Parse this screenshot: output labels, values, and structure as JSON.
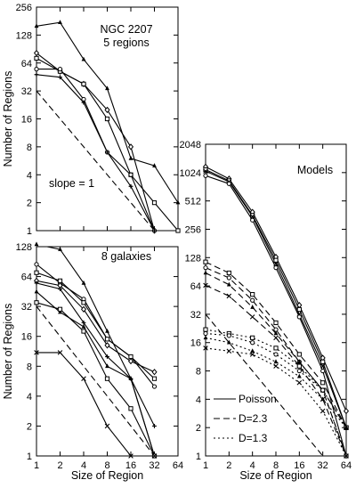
{
  "chart_data": [
    {
      "type": "line",
      "panel": "top-left",
      "annotations": [
        "NGC 2207",
        "5 regions",
        "slope = 1"
      ],
      "xlabel": "",
      "ylabel": "Number of Regions",
      "xscale": "log2",
      "yscale": "log2",
      "xlim": [
        1,
        64
      ],
      "ylim": [
        1,
        256
      ],
      "x_ticks": [
        "1",
        "2",
        "4",
        "8",
        "16",
        "32",
        "64"
      ],
      "y_ticks": [
        "1",
        "2",
        "4",
        "8",
        "16",
        "32",
        "64",
        "128",
        "256"
      ],
      "x_tick_labels_shown": false,
      "series": [
        {
          "style": "solid",
          "marker": "triangle",
          "x": [
            1,
            2,
            4,
            8,
            16,
            32,
            64
          ],
          "y": [
            160,
            175,
            70,
            34,
            6,
            5,
            2
          ]
        },
        {
          "style": "solid",
          "marker": "diamond",
          "x": [
            1,
            2,
            4,
            8,
            16,
            32
          ],
          "y": [
            82,
            52,
            38,
            20,
            8,
            1
          ]
        },
        {
          "style": "solid",
          "marker": "square",
          "x": [
            1,
            2,
            4,
            8,
            16,
            32,
            64
          ],
          "y": [
            72,
            52,
            38,
            16,
            4,
            2,
            1
          ]
        },
        {
          "style": "solid",
          "marker": "circle",
          "x": [
            1,
            2,
            4,
            8,
            16,
            32
          ],
          "y": [
            55,
            55,
            26,
            7,
            4,
            1
          ]
        },
        {
          "style": "solid",
          "marker": "plus",
          "x": [
            1,
            2,
            4,
            8,
            16,
            32
          ],
          "y": [
            48,
            45,
            24,
            7,
            3,
            1
          ]
        },
        {
          "style": "dashed",
          "label": "slope = 1",
          "x": [
            1,
            32
          ],
          "y": [
            32,
            1
          ]
        }
      ]
    },
    {
      "type": "line",
      "panel": "bottom-left",
      "annotations": [
        "8 galaxies"
      ],
      "xlabel": "Size of Region",
      "ylabel": "Number of Regions",
      "xscale": "log2",
      "yscale": "log2",
      "xlim": [
        1,
        64
      ],
      "ylim": [
        1,
        128
      ],
      "x_ticks": [
        "1",
        "2",
        "4",
        "8",
        "16",
        "32",
        "64"
      ],
      "y_ticks": [
        "1",
        "2",
        "4",
        "8",
        "16",
        "32",
        "64",
        "128"
      ],
      "series": [
        {
          "style": "solid",
          "marker": "triangle",
          "x": [
            1,
            2,
            4,
            8,
            16,
            32
          ],
          "y": [
            135,
            120,
            55,
            18,
            6,
            1
          ]
        },
        {
          "style": "solid",
          "marker": "circle",
          "x": [
            1,
            2,
            4,
            8,
            16,
            32
          ],
          "y": [
            85,
            55,
            38,
            15,
            10,
            5
          ]
        },
        {
          "style": "solid",
          "marker": "square",
          "x": [
            1,
            2,
            4,
            8,
            16,
            32
          ],
          "y": [
            70,
            58,
            35,
            15,
            10,
            6
          ]
        },
        {
          "style": "solid",
          "marker": "diamond",
          "x": [
            1,
            2,
            4,
            8,
            16,
            32
          ],
          "y": [
            58,
            52,
            30,
            13,
            9,
            7
          ]
        },
        {
          "style": "solid",
          "marker": "plus",
          "x": [
            1,
            2,
            4,
            8,
            16,
            32
          ],
          "y": [
            55,
            48,
            22,
            10,
            6,
            2
          ]
        },
        {
          "style": "solid",
          "marker": "triangle",
          "x": [
            1,
            2,
            4,
            8,
            16,
            32
          ],
          "y": [
            45,
            28,
            20,
            8,
            6,
            1
          ]
        },
        {
          "style": "solid",
          "marker": "square",
          "x": [
            1,
            2,
            4,
            8,
            16,
            32
          ],
          "y": [
            35,
            30,
            18,
            6,
            3,
            1
          ]
        },
        {
          "style": "solid",
          "marker": "x",
          "x": [
            1,
            2,
            4,
            8,
            16,
            32
          ],
          "y": [
            11,
            11,
            6,
            2,
            1,
            1
          ]
        },
        {
          "style": "dashed",
          "x": [
            1,
            32
          ],
          "y": [
            32,
            1
          ]
        }
      ]
    },
    {
      "type": "line",
      "panel": "right",
      "annotations": [
        "Models"
      ],
      "xlabel": "Size of Region",
      "ylabel": "",
      "xscale": "log2",
      "yscale": "log2",
      "xlim": [
        1,
        64
      ],
      "ylim": [
        1,
        2048
      ],
      "x_ticks": [
        "1",
        "2",
        "4",
        "8",
        "16",
        "32",
        "64"
      ],
      "y_ticks": [
        "1",
        "2",
        "4",
        "8",
        "16",
        "32",
        "64",
        "128",
        "256",
        "512",
        "1024",
        "2048"
      ],
      "legend": {
        "placement": "bottom",
        "entries": [
          {
            "label": "Poisson",
            "style": "solid"
          },
          {
            "label": "D=2.3",
            "style": "dashed"
          },
          {
            "label": "D=1.3",
            "style": "dotted"
          }
        ]
      },
      "series": [
        {
          "group": "Poisson",
          "style": "solid",
          "marker": "diamond",
          "x": [
            1,
            2,
            4,
            8,
            16,
            32,
            64
          ],
          "y": [
            1180,
            880,
            390,
            130,
            40,
            11,
            3
          ]
        },
        {
          "group": "Poisson",
          "style": "solid",
          "marker": "square",
          "x": [
            1,
            2,
            4,
            8,
            16,
            32,
            64
          ],
          "y": [
            1100,
            840,
            360,
            120,
            36,
            10,
            2
          ]
        },
        {
          "group": "Poisson",
          "style": "solid",
          "marker": "x",
          "x": [
            1,
            2,
            4,
            8,
            16,
            32,
            64
          ],
          "y": [
            1060,
            820,
            350,
            110,
            32,
            9,
            2
          ]
        },
        {
          "group": "Poisson",
          "style": "solid",
          "marker": "circle",
          "x": [
            1,
            2,
            4,
            8,
            16,
            32,
            64
          ],
          "y": [
            950,
            780,
            320,
            100,
            30,
            8,
            1
          ]
        },
        {
          "group": "D=2.3",
          "style": "dashed",
          "marker": "square",
          "x": [
            1,
            2,
            4,
            8,
            16,
            32,
            64
          ],
          "y": [
            115,
            88,
            52,
            26,
            12,
            6,
            2
          ]
        },
        {
          "group": "D=2.3",
          "style": "dashed",
          "marker": "circle",
          "x": [
            1,
            2,
            4,
            8,
            16,
            32,
            64
          ],
          "y": [
            100,
            78,
            45,
            22,
            10,
            5,
            1
          ]
        },
        {
          "group": "D=2.3",
          "style": "dashed",
          "marker": "triangle",
          "x": [
            1,
            2,
            4,
            8,
            16,
            32,
            64
          ],
          "y": [
            88,
            66,
            38,
            20,
            10,
            5,
            2
          ]
        },
        {
          "group": "D=2.3",
          "style": "dashed",
          "marker": "x",
          "x": [
            1,
            2,
            4,
            8,
            16,
            32,
            64
          ],
          "y": [
            65,
            50,
            30,
            18,
            9,
            4,
            1
          ]
        },
        {
          "group": "D=1.3",
          "style": "dotted",
          "marker": "square",
          "x": [
            1,
            2,
            4,
            8,
            16,
            32,
            64
          ],
          "y": [
            22,
            20,
            18,
            14,
            9,
            5,
            2
          ]
        },
        {
          "group": "D=1.3",
          "style": "dotted",
          "marker": "circle",
          "x": [
            1,
            2,
            4,
            8,
            16,
            32,
            64
          ],
          "y": [
            20,
            19,
            16,
            12,
            8,
            5,
            1
          ]
        },
        {
          "group": "D=1.3",
          "style": "dotted",
          "marker": "triangle",
          "x": [
            1,
            2,
            4,
            8,
            16,
            32,
            64
          ],
          "y": [
            18,
            16,
            13,
            10,
            7,
            4,
            2
          ]
        },
        {
          "group": "D=1.3",
          "style": "dotted",
          "marker": "x",
          "x": [
            1,
            2,
            4,
            8,
            16,
            32,
            64
          ],
          "y": [
            14,
            13,
            12,
            9,
            6,
            3,
            1
          ]
        },
        {
          "style": "dashed",
          "x": [
            1,
            32
          ],
          "y": [
            32,
            1
          ]
        }
      ]
    }
  ]
}
